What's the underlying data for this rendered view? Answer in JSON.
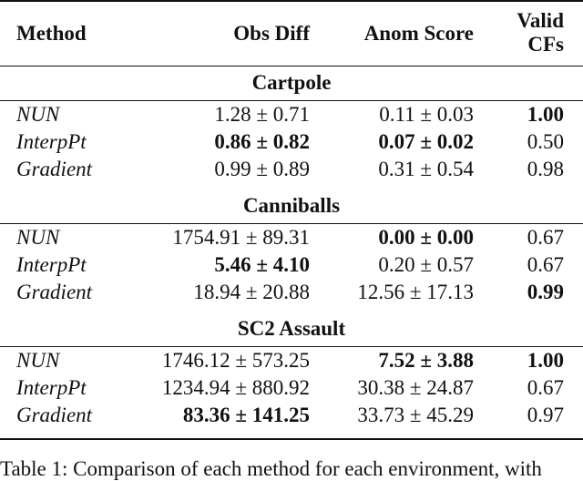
{
  "headers": {
    "method": "Method",
    "obs_diff": "Obs Diff",
    "anom_score": "Anom Score",
    "valid_1": "Valid",
    "valid_2": "CFs"
  },
  "sections": [
    {
      "name": "Cartpole",
      "rows": [
        {
          "method": "NUN",
          "obs": "1.28 ± 0.71",
          "anom": "0.11 ± 0.03",
          "valid": "1.00",
          "bold": [
            "valid"
          ]
        },
        {
          "method": "InterpPt",
          "obs": "0.86 ± 0.82",
          "anom": "0.07 ± 0.02",
          "valid": "0.50",
          "bold": [
            "obs",
            "anom"
          ]
        },
        {
          "method": "Gradient",
          "obs": "0.99 ± 0.89",
          "anom": "0.31 ± 0.54",
          "valid": "0.98",
          "bold": []
        }
      ]
    },
    {
      "name": "Canniballs",
      "rows": [
        {
          "method": "NUN",
          "obs": "1754.91 ± 89.31",
          "anom": "0.00 ± 0.00",
          "valid": "0.67",
          "bold": [
            "anom"
          ]
        },
        {
          "method": "InterpPt",
          "obs": "5.46 ± 4.10",
          "anom": "0.20 ± 0.57",
          "valid": "0.67",
          "bold": [
            "obs"
          ]
        },
        {
          "method": "Gradient",
          "obs": "18.94 ± 20.88",
          "anom": "12.56 ± 17.13",
          "valid": "0.99",
          "bold": [
            "valid"
          ]
        }
      ]
    },
    {
      "name": "SC2 Assault",
      "rows": [
        {
          "method": "NUN",
          "obs": "1746.12 ± 573.25",
          "anom": "7.52 ± 3.88",
          "valid": "1.00",
          "bold": [
            "anom",
            "valid"
          ]
        },
        {
          "method": "InterpPt",
          "obs": "1234.94 ± 880.92",
          "anom": "30.38 ± 24.87",
          "valid": "0.67",
          "bold": []
        },
        {
          "method": "Gradient",
          "obs": "83.36 ± 141.25",
          "anom": "33.73 ± 45.29",
          "valid": "0.97",
          "bold": [
            "obs"
          ]
        }
      ]
    }
  ],
  "caption": "Table 1: Comparison of each method for each environment, with"
}
